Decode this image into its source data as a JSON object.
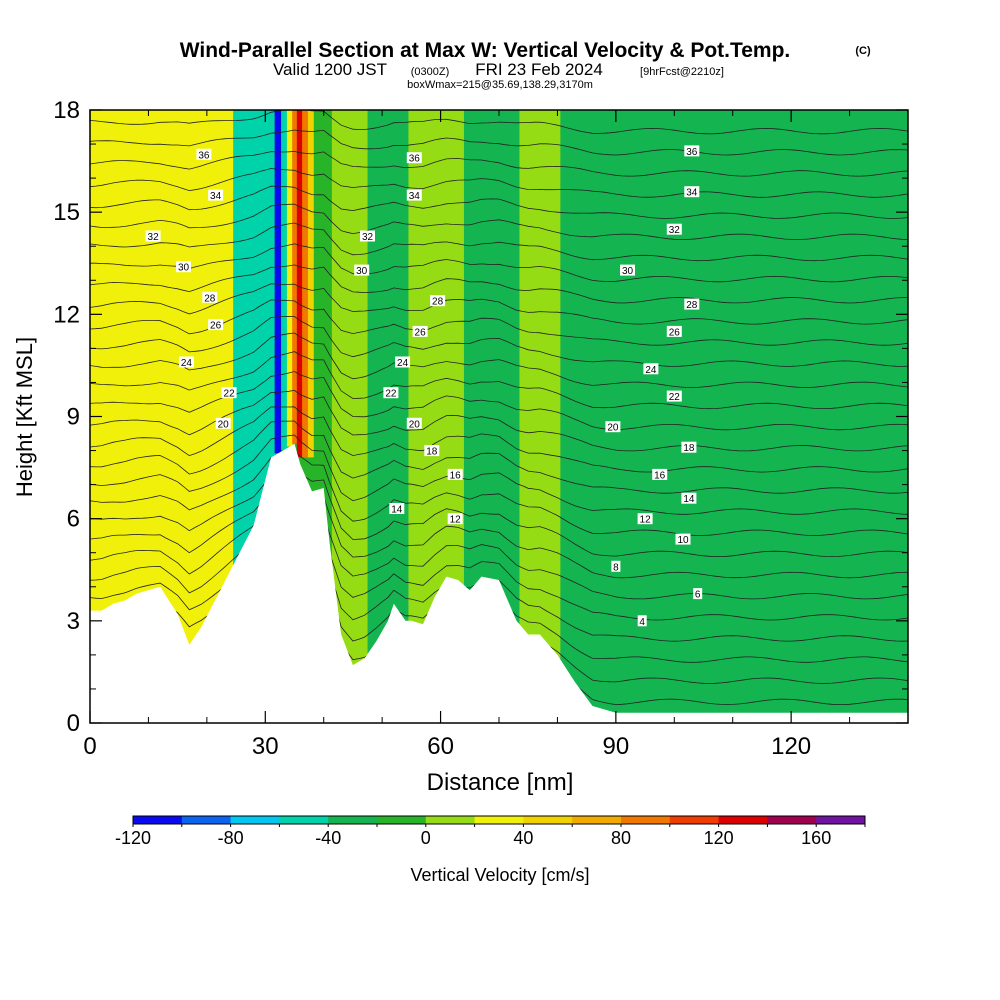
{
  "chart_data": {
    "type": "heatmap",
    "title": "Wind-Parallel Section at Max W: Vertical Velocity & Pot.Temp.",
    "title_mark": "(C)",
    "subtitle": {
      "valid_label": "Valid 1200 JST",
      "utc": "(0300Z)",
      "date": "FRI 23 Feb 2024",
      "forecast": "[9hrFcst@2210z]"
    },
    "box_note": "boxWmax=215@35.69,138.29,3170m",
    "xlabel": "Distance [nm]",
    "ylabel": "Height [Kft MSL]",
    "xlim": [
      0,
      140
    ],
    "ylim": [
      0,
      18
    ],
    "x_ticks": [
      "0",
      "30",
      "60",
      "90",
      "120"
    ],
    "y_ticks": [
      "0",
      "3",
      "6",
      "9",
      "12",
      "15",
      "18"
    ],
    "colorbar": {
      "label": "Vertical Velocity [cm/s]",
      "tick_labels": [
        "-120",
        "-80",
        "-40",
        "0",
        "40",
        "80",
        "120",
        "160"
      ],
      "bins": [
        -120,
        -100,
        -80,
        -60,
        -40,
        -20,
        0,
        20,
        40,
        60,
        80,
        100,
        120,
        140,
        160,
        180
      ],
      "colors": [
        "#0a0af0",
        "#0a64f0",
        "#00c8f0",
        "#00d2aa",
        "#14b450",
        "#28b428",
        "#96dc14",
        "#f0f00a",
        "#f0d200",
        "#f0aa00",
        "#f07800",
        "#f03c00",
        "#dc0000",
        "#a00050",
        "#6e14a0"
      ]
    },
    "terrain_kft": {
      "x": [
        0,
        2,
        4,
        6,
        8,
        12,
        15,
        17,
        19,
        22,
        25,
        28,
        31,
        33,
        35,
        36,
        38,
        40,
        41,
        43,
        45,
        47,
        49,
        51,
        52,
        54,
        55,
        57,
        59,
        61,
        63,
        65,
        67,
        70,
        73,
        75,
        77,
        80,
        83,
        86,
        88,
        90,
        95,
        100,
        110,
        120,
        130,
        140
      ],
      "z": [
        3.3,
        3.3,
        3.5,
        3.6,
        3.8,
        4.0,
        3.2,
        2.3,
        2.8,
        3.8,
        4.8,
        5.8,
        7.8,
        8.0,
        8.2,
        7.6,
        6.8,
        6.9,
        5.3,
        2.6,
        1.7,
        1.9,
        2.4,
        3.0,
        3.5,
        3.0,
        3.0,
        2.9,
        3.7,
        4.3,
        4.2,
        3.9,
        4.3,
        4.2,
        3.0,
        2.6,
        2.6,
        2.0,
        1.2,
        0.5,
        0.4,
        0.3,
        0.3,
        0.3,
        0.3,
        0.3,
        0.3,
        0.3
      ]
    },
    "w_bands_cms": [
      {
        "x": 3,
        "w": 25
      },
      {
        "x": 10,
        "w": 30
      },
      {
        "x": 18,
        "w": 20
      },
      {
        "x": 31,
        "w": -55
      },
      {
        "x": 32.2,
        "w": -110
      },
      {
        "x": 33.2,
        "w": -60
      },
      {
        "x": 34.2,
        "w": 30
      },
      {
        "x": 35,
        "w": 90
      },
      {
        "x": 35.8,
        "w": 125
      },
      {
        "x": 36.8,
        "w": 80
      },
      {
        "x": 37.8,
        "w": 40
      },
      {
        "x": 38.8,
        "w": -20
      },
      {
        "x": 44,
        "w": 10
      },
      {
        "x": 51,
        "w": -25
      },
      {
        "x": 58,
        "w": 10
      },
      {
        "x": 70,
        "w": -25
      },
      {
        "x": 77,
        "w": 10
      },
      {
        "x": 84,
        "w": -25
      },
      {
        "x": 100,
        "w": -25
      },
      {
        "x": 113,
        "w": -25
      },
      {
        "x": 126,
        "w": -25
      },
      {
        "x": 136,
        "w": -25
      }
    ],
    "theta_labels": [
      {
        "text": "36",
        "x": 19.5,
        "y": 16.7
      },
      {
        "text": "34",
        "x": 21.5,
        "y": 15.5
      },
      {
        "text": "32",
        "x": 10.8,
        "y": 14.3
      },
      {
        "text": "30",
        "x": 16,
        "y": 13.4
      },
      {
        "text": "28",
        "x": 20.5,
        "y": 12.5
      },
      {
        "text": "26",
        "x": 21.5,
        "y": 11.7
      },
      {
        "text": "24",
        "x": 16.5,
        "y": 10.6
      },
      {
        "text": "22",
        "x": 23.8,
        "y": 9.7
      },
      {
        "text": "20",
        "x": 22.8,
        "y": 8.8
      },
      {
        "text": "36",
        "x": 55.5,
        "y": 16.6
      },
      {
        "text": "34",
        "x": 55.5,
        "y": 15.5
      },
      {
        "text": "32",
        "x": 47.5,
        "y": 14.3
      },
      {
        "text": "30",
        "x": 46.5,
        "y": 13.3
      },
      {
        "text": "28",
        "x": 59.5,
        "y": 12.4
      },
      {
        "text": "26",
        "x": 56.5,
        "y": 11.5
      },
      {
        "text": "24",
        "x": 53.5,
        "y": 10.6
      },
      {
        "text": "22",
        "x": 51.5,
        "y": 9.7
      },
      {
        "text": "20",
        "x": 55.5,
        "y": 8.8
      },
      {
        "text": "18",
        "x": 58.5,
        "y": 8.0
      },
      {
        "text": "16",
        "x": 62.5,
        "y": 7.3
      },
      {
        "text": "14",
        "x": 52.5,
        "y": 6.3
      },
      {
        "text": "12",
        "x": 62.5,
        "y": 6.0
      },
      {
        "text": "36",
        "x": 103,
        "y": 16.8
      },
      {
        "text": "34",
        "x": 103,
        "y": 15.6
      },
      {
        "text": "32",
        "x": 100,
        "y": 14.5
      },
      {
        "text": "30",
        "x": 92,
        "y": 13.3
      },
      {
        "text": "28",
        "x": 103,
        "y": 12.3
      },
      {
        "text": "26",
        "x": 100,
        "y": 11.5
      },
      {
        "text": "24",
        "x": 96,
        "y": 10.4
      },
      {
        "text": "22",
        "x": 100,
        "y": 9.6
      },
      {
        "text": "20",
        "x": 89.5,
        "y": 8.7
      },
      {
        "text": "18",
        "x": 102.5,
        "y": 8.1
      },
      {
        "text": "16",
        "x": 97.5,
        "y": 7.3
      },
      {
        "text": "14",
        "x": 102.5,
        "y": 6.6
      },
      {
        "text": "12",
        "x": 95,
        "y": 6.0
      },
      {
        "text": "10",
        "x": 101.5,
        "y": 5.4
      },
      {
        "text": "8",
        "x": 90,
        "y": 4.6
      },
      {
        "text": "6",
        "x": 104,
        "y": 3.8
      },
      {
        "text": "4",
        "x": 94.5,
        "y": 3.0
      }
    ]
  }
}
